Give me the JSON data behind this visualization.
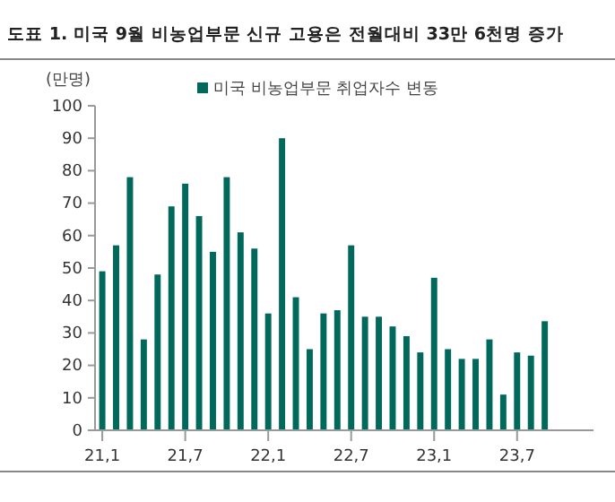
{
  "chart_data": {
    "type": "bar",
    "title": "도표 1. 미국 9월 비농업부문 신규 고용은 전월대비 33만 6천명 증가",
    "ylabel": "(만명)",
    "categories": [
      "21,1",
      null,
      null,
      null,
      null,
      null,
      "21,7",
      null,
      null,
      null,
      null,
      null,
      "22,1",
      null,
      null,
      null,
      null,
      null,
      "22,7",
      null,
      null,
      null,
      null,
      null,
      "23,1",
      null,
      null,
      null,
      null,
      null,
      "23,7",
      null,
      null,
      null,
      null,
      null
    ],
    "series": [
      {
        "name": "미국 비농업부문 취업자수 변동",
        "color": "#00695c",
        "values": [
          49,
          57,
          78,
          28,
          48,
          69,
          76,
          66,
          55,
          78,
          61,
          56,
          36,
          90,
          41,
          25,
          36,
          37,
          57,
          35,
          35,
          32,
          29,
          24,
          47,
          25,
          22,
          22,
          28,
          11,
          24,
          23,
          33.6,
          null,
          null,
          null
        ]
      }
    ],
    "ylim": [
      0,
      100
    ],
    "yticks": [
      0,
      10,
      20,
      30,
      40,
      50,
      60,
      70,
      80,
      90,
      100
    ],
    "grid": false,
    "legend": "top"
  }
}
